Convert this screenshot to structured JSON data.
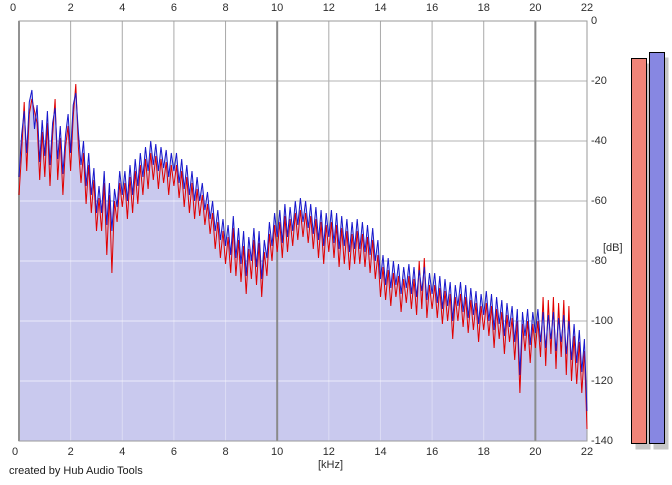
{
  "meta": {
    "credit": "created by Hub Audio Tools"
  },
  "chart_data": {
    "type": "area",
    "title": "",
    "xlabel": "[kHz]",
    "ylabel": "[dB]",
    "xlim": [
      0,
      22
    ],
    "ylim": [
      -140,
      0
    ],
    "grid": true,
    "x_tick_step_khz": 2,
    "y_tick_step_db": 20,
    "x_ticks": [
      "0",
      "2",
      "4",
      "6",
      "8",
      "10",
      "12",
      "14",
      "16",
      "18",
      "20",
      "22"
    ],
    "y_ticks": [
      "0",
      "-20",
      "-40",
      "-60",
      "-80",
      "-100",
      "-120",
      "-140"
    ],
    "x_start_khz": 0.0,
    "x_step_khz": 0.1,
    "series": [
      {
        "name": "red-spectrum",
        "line_color": "#e00000",
        "fill_color": "#f4b2ab",
        "values_db": [
          -58,
          -44,
          -27,
          -50,
          -31,
          -26,
          -30,
          -34,
          -53,
          -37,
          -52,
          -34,
          -55,
          -38,
          -26,
          -53,
          -39,
          -58,
          -42,
          -35,
          -50,
          -32,
          -21,
          -42,
          -54,
          -44,
          -61,
          -48,
          -64,
          -53,
          -70,
          -59,
          -70,
          -54,
          -78,
          -58,
          -84,
          -60,
          -67,
          -54,
          -62,
          -54,
          -66,
          -52,
          -64,
          -50,
          -61,
          -48,
          -58,
          -46,
          -56,
          -44,
          -53,
          -45,
          -56,
          -46,
          -54,
          -47,
          -58,
          -48,
          -55,
          -48,
          -59,
          -50,
          -62,
          -52,
          -64,
          -54,
          -66,
          -56,
          -65,
          -58,
          -68,
          -61,
          -71,
          -64,
          -76,
          -67,
          -79,
          -70,
          -81,
          -72,
          -84,
          -69,
          -85,
          -73,
          -87,
          -75,
          -91,
          -76,
          -86,
          -73,
          -88,
          -74,
          -92,
          -77,
          -85,
          -71,
          -80,
          -68,
          -77,
          -67,
          -79,
          -65,
          -77,
          -66,
          -75,
          -64,
          -73,
          -63,
          -72,
          -64,
          -74,
          -65,
          -76,
          -66,
          -79,
          -67,
          -81,
          -68,
          -77,
          -67,
          -79,
          -68,
          -82,
          -69,
          -81,
          -70,
          -83,
          -71,
          -81,
          -70,
          -81,
          -71,
          -82,
          -72,
          -84,
          -73,
          -86,
          -78,
          -92,
          -82,
          -93,
          -83,
          -95,
          -84,
          -92,
          -85,
          -97,
          -86,
          -94,
          -85,
          -96,
          -86,
          -98,
          -80,
          -96,
          -79,
          -99,
          -88,
          -96,
          -88,
          -99,
          -89,
          -101,
          -90,
          -100,
          -91,
          -106,
          -92,
          -100,
          -91,
          -102,
          -92,
          -104,
          -93,
          -103,
          -94,
          -107,
          -95,
          -103,
          -94,
          -105,
          -95,
          -109,
          -96,
          -106,
          -97,
          -111,
          -98,
          -107,
          -99,
          -113,
          -100,
          -124,
          -101,
          -110,
          -100,
          -114,
          -101,
          -109,
          -100,
          -112,
          -92,
          -115,
          -93,
          -111,
          -92,
          -116,
          -94,
          -112,
          -93,
          -118,
          -95,
          -120,
          -105,
          -121,
          -107,
          -124,
          -110,
          -136
        ]
      },
      {
        "name": "blue-spectrum",
        "line_color": "#1818cc",
        "fill_color": "#c9c9ee",
        "values_db": [
          -52,
          -38,
          -30,
          -44,
          -27,
          -23,
          -36,
          -28,
          -47,
          -33,
          -45,
          -30,
          -48,
          -34,
          -29,
          -46,
          -35,
          -51,
          -38,
          -31,
          -44,
          -28,
          -24,
          -37,
          -48,
          -40,
          -55,
          -44,
          -58,
          -49,
          -64,
          -55,
          -64,
          -50,
          -68,
          -54,
          -70,
          -56,
          -62,
          -50,
          -58,
          -50,
          -60,
          -48,
          -58,
          -46,
          -55,
          -44,
          -52,
          -42,
          -50,
          -40,
          -48,
          -41,
          -50,
          -42,
          -49,
          -43,
          -52,
          -44,
          -50,
          -44,
          -54,
          -46,
          -56,
          -48,
          -58,
          -50,
          -60,
          -52,
          -60,
          -54,
          -63,
          -57,
          -66,
          -60,
          -70,
          -63,
          -73,
          -66,
          -75,
          -68,
          -78,
          -65,
          -79,
          -69,
          -81,
          -70,
          -85,
          -72,
          -80,
          -69,
          -82,
          -70,
          -86,
          -73,
          -79,
          -67,
          -75,
          -64,
          -72,
          -63,
          -74,
          -61,
          -72,
          -62,
          -70,
          -60,
          -68,
          -59,
          -67,
          -60,
          -69,
          -61,
          -71,
          -62,
          -73,
          -63,
          -75,
          -64,
          -72,
          -63,
          -74,
          -64,
          -76,
          -65,
          -75,
          -66,
          -77,
          -67,
          -76,
          -66,
          -76,
          -67,
          -77,
          -68,
          -78,
          -69,
          -80,
          -73,
          -86,
          -78,
          -88,
          -79,
          -89,
          -80,
          -88,
          -81,
          -91,
          -82,
          -89,
          -81,
          -91,
          -82,
          -92,
          -83,
          -90,
          -82,
          -93,
          -84,
          -91,
          -84,
          -94,
          -85,
          -96,
          -86,
          -95,
          -87,
          -100,
          -88,
          -95,
          -87,
          -97,
          -88,
          -99,
          -89,
          -98,
          -90,
          -101,
          -91,
          -98,
          -90,
          -100,
          -91,
          -103,
          -92,
          -101,
          -93,
          -105,
          -94,
          -102,
          -95,
          -107,
          -96,
          -118,
          -97,
          -105,
          -96,
          -108,
          -97,
          -104,
          -96,
          -107,
          -97,
          -109,
          -98,
          -106,
          -97,
          -110,
          -99,
          -107,
          -98,
          -111,
          -100,
          -113,
          -101,
          -114,
          -103,
          -117,
          -106,
          -130
        ]
      }
    ],
    "meters": [
      {
        "name": "red-level-meter",
        "value_db": -12.5,
        "fill": "#f08478",
        "border": "#000000"
      },
      {
        "name": "blue-level-meter",
        "value_db": -10.5,
        "fill": "#8787e2",
        "border": "#000000"
      }
    ]
  },
  "colors": {
    "background": "#ffffff",
    "plot_background": "#ffffff",
    "grid_thin": "#a9a9a9",
    "grid_horizontal": "#b3b3b3",
    "grid_thick": "#8a8a8a",
    "plot_border": "#9a9a9a",
    "meter_shadow": "#c6c6c6",
    "label_text": "#2e2e2e"
  }
}
